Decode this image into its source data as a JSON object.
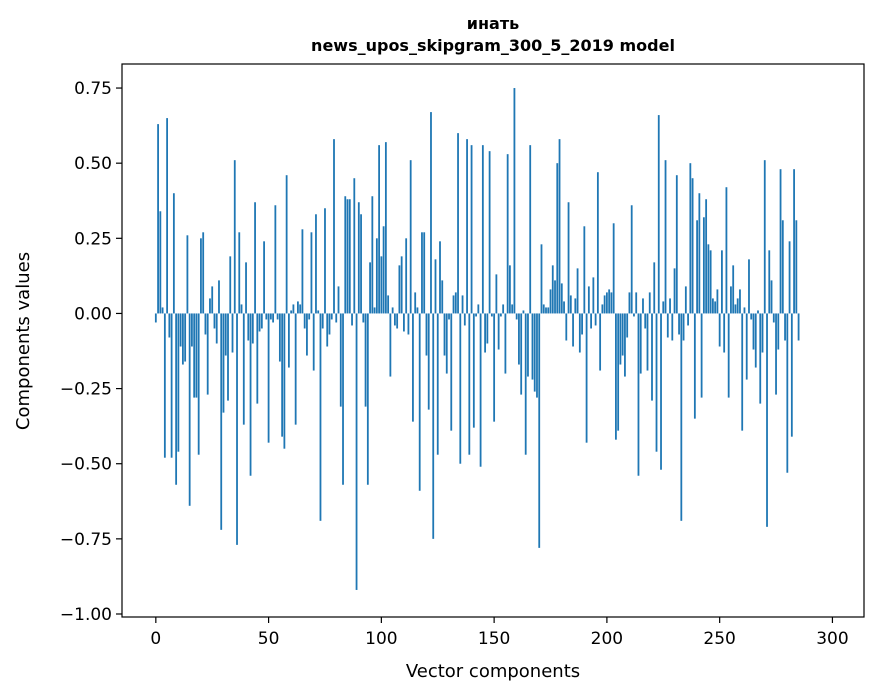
{
  "chart_data": {
    "type": "bar",
    "title": "инать",
    "subtitle": "news_upos_skipgram_300_5_2019 model",
    "xlabel": "Vector components",
    "ylabel": "Components values",
    "xlim": [
      -15,
      314
    ],
    "ylim": [
      -1.01,
      0.83
    ],
    "xticks": [
      0,
      50,
      100,
      150,
      200,
      250,
      300
    ],
    "yticks": [
      -1.0,
      -0.75,
      -0.5,
      -0.25,
      0.0,
      0.25,
      0.5,
      0.75
    ],
    "ytick_labels": [
      "−1.00",
      "−0.75",
      "−0.50",
      "−0.25",
      "0.00",
      "0.25",
      "0.50",
      "0.75"
    ],
    "bar_color": "#1f77b4",
    "values": [
      -0.03,
      0.63,
      0.34,
      0.02,
      -0.48,
      0.65,
      -0.08,
      -0.48,
      0.4,
      -0.57,
      -0.46,
      -0.11,
      -0.17,
      -0.16,
      0.26,
      -0.64,
      -0.11,
      -0.28,
      -0.28,
      -0.47,
      0.25,
      0.27,
      -0.07,
      -0.27,
      0.05,
      0.09,
      -0.05,
      -0.1,
      0.11,
      -0.72,
      -0.33,
      -0.14,
      -0.29,
      0.19,
      -0.13,
      0.51,
      -0.77,
      0.27,
      0.03,
      -0.37,
      0.17,
      -0.09,
      -0.54,
      -0.1,
      0.37,
      -0.3,
      -0.06,
      -0.05,
      0.24,
      -0.02,
      -0.43,
      -0.02,
      -0.03,
      0.36,
      -0.02,
      -0.16,
      -0.41,
      -0.45,
      0.46,
      -0.18,
      0.01,
      0.03,
      -0.37,
      0.04,
      0.03,
      0.28,
      -0.05,
      -0.14,
      -0.02,
      0.27,
      -0.19,
      0.33,
      0.01,
      -0.69,
      -0.05,
      0.35,
      -0.11,
      -0.07,
      -0.02,
      0.58,
      -0.03,
      0.09,
      -0.31,
      -0.57,
      0.39,
      0.38,
      0.38,
      -0.04,
      0.45,
      -0.92,
      0.37,
      0.33,
      -0.03,
      -0.31,
      -0.57,
      0.17,
      0.39,
      0.02,
      0.25,
      0.56,
      0.19,
      0.29,
      0.57,
      0.06,
      -0.21,
      0.02,
      -0.04,
      -0.05,
      0.16,
      0.19,
      -0.06,
      0.25,
      -0.07,
      0.51,
      -0.36,
      0.07,
      0.02,
      -0.59,
      0.27,
      0.27,
      -0.14,
      -0.32,
      0.67,
      -0.75,
      0.18,
      -0.47,
      0.24,
      0.11,
      -0.14,
      -0.2,
      -0.02,
      -0.39,
      0.06,
      0.07,
      0.6,
      -0.5,
      0.06,
      -0.04,
      0.58,
      -0.47,
      0.56,
      -0.38,
      -0.01,
      0.03,
      -0.51,
      0.56,
      -0.13,
      -0.1,
      0.54,
      -0.01,
      -0.36,
      0.13,
      -0.12,
      -0.01,
      0.03,
      -0.2,
      0.53,
      0.16,
      0.03,
      0.75,
      -0.02,
      -0.17,
      -0.27,
      0.01,
      -0.47,
      -0.21,
      0.56,
      -0.22,
      -0.26,
      -0.28,
      -0.78,
      0.23,
      0.03,
      0.02,
      0.02,
      0.08,
      0.16,
      0.11,
      0.5,
      0.58,
      0.1,
      0.04,
      -0.09,
      0.37,
      0.06,
      -0.11,
      0.05,
      0.15,
      -0.13,
      -0.07,
      0.29,
      -0.43,
      0.09,
      -0.05,
      0.12,
      -0.04,
      0.47,
      -0.19,
      0.03,
      0.06,
      0.07,
      0.08,
      0.07,
      0.3,
      -0.42,
      -0.39,
      -0.17,
      -0.14,
      -0.21,
      -0.08,
      0.07,
      0.36,
      -0.01,
      0.07,
      -0.54,
      -0.2,
      0.05,
      -0.05,
      -0.19,
      0.07,
      -0.29,
      0.17,
      -0.46,
      0.66,
      -0.52,
      0.04,
      0.51,
      -0.08,
      0.05,
      -0.09,
      0.15,
      0.46,
      -0.07,
      -0.69,
      -0.09,
      0.09,
      -0.04,
      0.5,
      0.45,
      -0.35,
      0.31,
      0.4,
      -0.28,
      0.32,
      0.38,
      0.23,
      0.21,
      0.05,
      0.04,
      0.08,
      -0.11,
      0.21,
      -0.13,
      0.42,
      -0.28,
      0.09,
      0.16,
      0.03,
      0.05,
      0.08,
      -0.39,
      0.02,
      -0.22,
      0.18,
      -0.02,
      -0.12,
      -0.18,
      0.01,
      -0.3,
      -0.13,
      0.51,
      -0.71,
      0.21,
      0.11,
      -0.03,
      -0.27,
      -0.12,
      0.48,
      0.31,
      -0.09,
      -0.53,
      0.24,
      -0.41,
      0.48,
      0.31,
      -0.09
    ]
  }
}
